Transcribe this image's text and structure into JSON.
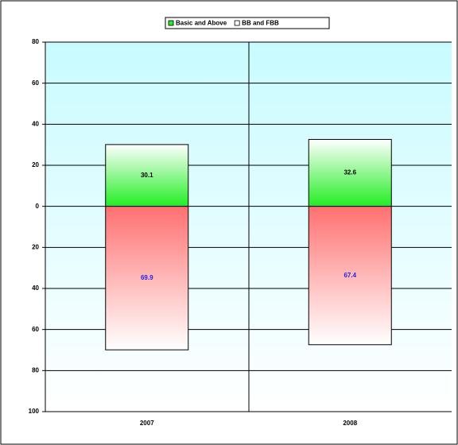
{
  "chart_data": {
    "type": "diverging-bar",
    "categories": [
      "2007",
      "2008"
    ],
    "series": [
      {
        "name": "Basic and Above",
        "color": "#22ee22",
        "label_color": "#000000",
        "values": [
          30.1,
          32.6
        ]
      },
      {
        "name": "BB and FBB",
        "color": "#ff7070",
        "label_color": "#2222ee",
        "values": [
          -69.9,
          -67.4
        ],
        "value_labels": [
          "69.9",
          "67.4"
        ]
      }
    ],
    "ylim": [
      -100,
      80
    ],
    "yticks": [
      80,
      60,
      40,
      20,
      0,
      {
        "value": -20,
        "label": "20"
      },
      {
        "value": -40,
        "label": "40"
      },
      {
        "value": -60,
        "label": "60"
      },
      {
        "value": -80,
        "label": "80"
      },
      {
        "value": -100,
        "label": "100"
      }
    ],
    "grid": true,
    "legend": "top"
  }
}
